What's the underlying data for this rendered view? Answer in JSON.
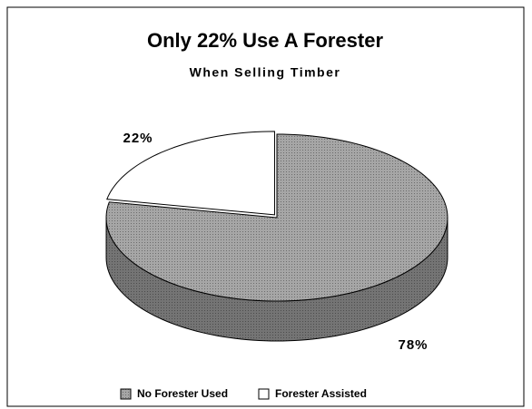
{
  "chart_data": {
    "type": "pie",
    "title": "Only 22% Use A Forester",
    "subtitle": "When Selling Timber",
    "categories": [
      "No Forester Used",
      "Forester Assisted"
    ],
    "values": [
      78,
      22
    ],
    "value_labels": [
      "78%",
      "22%"
    ],
    "colors": [
      "#a6a6a6",
      "#ffffff"
    ],
    "legend": "bottom"
  }
}
